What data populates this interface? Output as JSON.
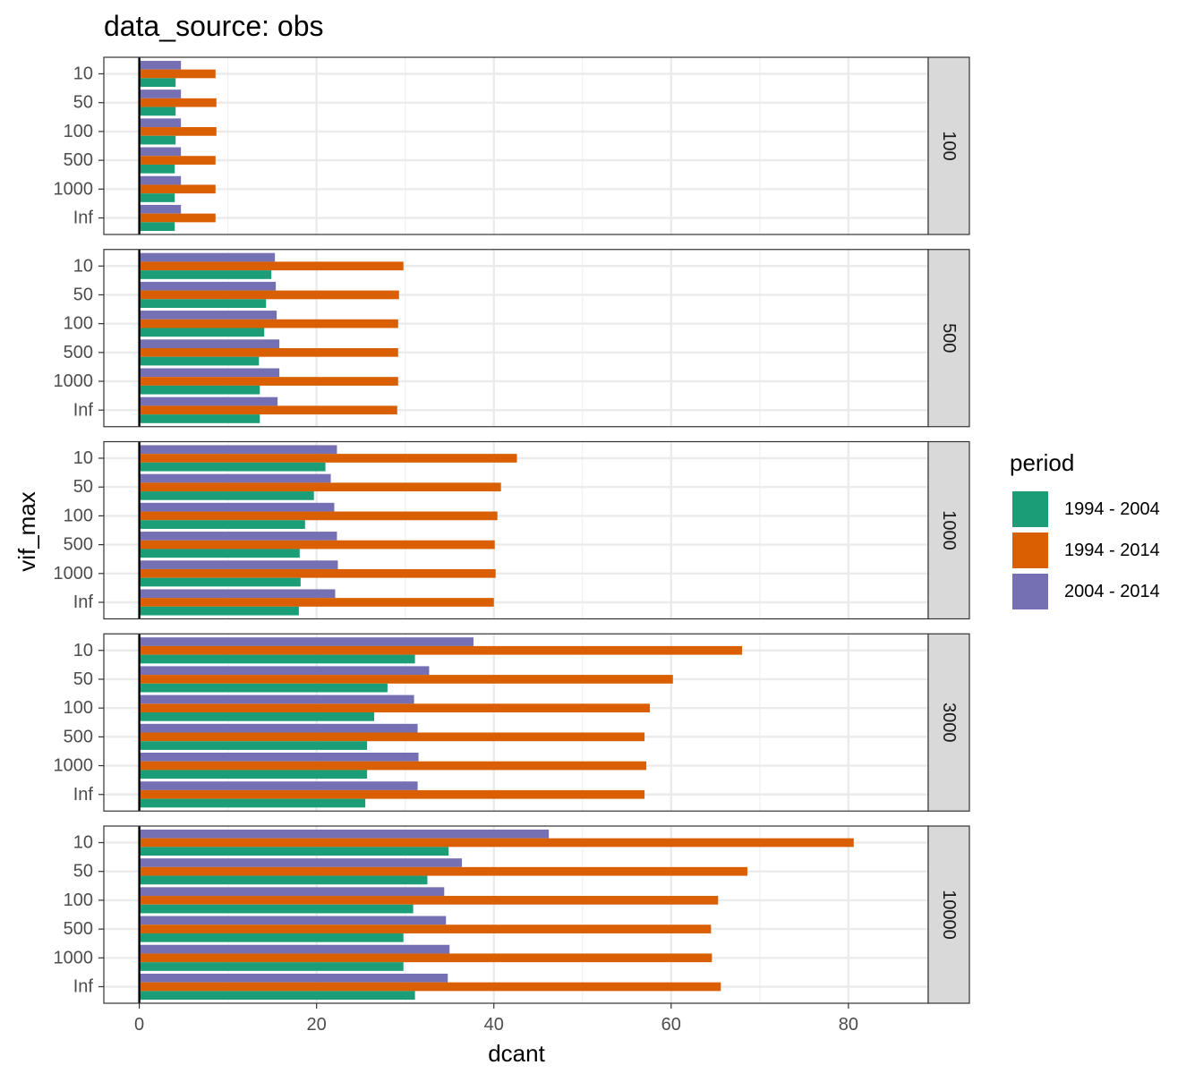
{
  "chart_data": {
    "type": "bar",
    "orientation": "horizontal",
    "title": "data_source: obs",
    "xlabel": "dcant",
    "ylabel": "vif_max",
    "xlim": [
      -4,
      89
    ],
    "xticks": [
      0,
      20,
      40,
      60,
      80
    ],
    "grid": true,
    "legend_position": "right",
    "legend_title": "period",
    "categories": [
      "10",
      "50",
      "100",
      "500",
      "1000",
      "Inf"
    ],
    "series_names": [
      "1994 - 2004",
      "1994 - 2014",
      "2004 - 2014"
    ],
    "colors": [
      "#1b9e77",
      "#d95f02",
      "#7570b3"
    ],
    "panels": [
      {
        "strip": "100",
        "series": [
          {
            "name": "1994 - 2004",
            "values": [
              4.1,
              4.1,
              4.1,
              4.0,
              4.0,
              4.0
            ]
          },
          {
            "name": "1994 - 2014",
            "values": [
              8.6,
              8.7,
              8.7,
              8.6,
              8.6,
              8.6
            ]
          },
          {
            "name": "2004 - 2014",
            "values": [
              4.7,
              4.7,
              4.7,
              4.7,
              4.7,
              4.7
            ]
          }
        ]
      },
      {
        "strip": "500",
        "series": [
          {
            "name": "1994 - 2004",
            "values": [
              14.9,
              14.3,
              14.1,
              13.5,
              13.6,
              13.6
            ]
          },
          {
            "name": "1994 - 2014",
            "values": [
              29.8,
              29.3,
              29.2,
              29.2,
              29.2,
              29.1
            ]
          },
          {
            "name": "2004 - 2014",
            "values": [
              15.3,
              15.4,
              15.5,
              15.8,
              15.8,
              15.6
            ]
          }
        ]
      },
      {
        "strip": "1000",
        "series": [
          {
            "name": "1994 - 2004",
            "values": [
              21.0,
              19.7,
              18.7,
              18.1,
              18.2,
              18.0
            ]
          },
          {
            "name": "1994 - 2014",
            "values": [
              42.6,
              40.8,
              40.4,
              40.1,
              40.2,
              40.0
            ]
          },
          {
            "name": "2004 - 2014",
            "values": [
              22.3,
              21.6,
              22.0,
              22.3,
              22.4,
              22.1
            ]
          }
        ]
      },
      {
        "strip": "3000",
        "series": [
          {
            "name": "1994 - 2004",
            "values": [
              31.1,
              28.0,
              26.5,
              25.7,
              25.7,
              25.5
            ]
          },
          {
            "name": "1994 - 2014",
            "values": [
              68.0,
              60.2,
              57.6,
              57.0,
              57.2,
              57.0
            ]
          },
          {
            "name": "2004 - 2014",
            "values": [
              37.7,
              32.7,
              31.0,
              31.4,
              31.5,
              31.4
            ]
          }
        ]
      },
      {
        "strip": "10000",
        "series": [
          {
            "name": "1994 - 2004",
            "values": [
              34.9,
              32.5,
              30.9,
              29.8,
              29.8,
              31.1
            ]
          },
          {
            "name": "1994 - 2014",
            "values": [
              80.6,
              68.6,
              65.3,
              64.5,
              64.6,
              65.6
            ]
          },
          {
            "name": "2004 - 2014",
            "values": [
              46.2,
              36.4,
              34.4,
              34.6,
              35.0,
              34.8
            ]
          }
        ]
      }
    ]
  }
}
